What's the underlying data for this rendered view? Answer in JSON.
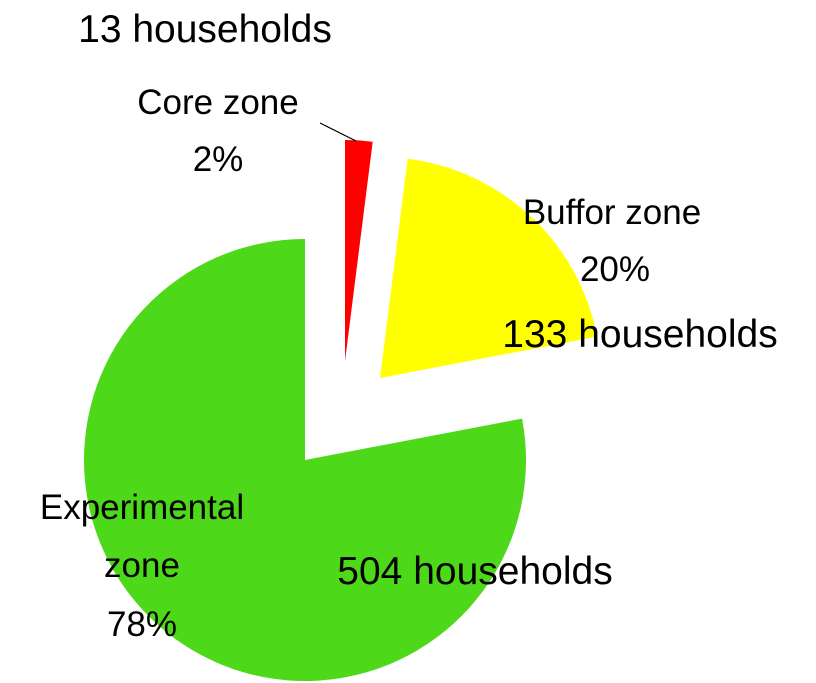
{
  "chart_data": {
    "type": "pie",
    "categories": [
      "Core zone",
      "Buffor zone",
      "Experimental zone"
    ],
    "values": [
      2,
      20,
      78
    ],
    "value_labels": [
      "2%",
      "20%",
      "78%"
    ],
    "household_labels": [
      "13 households",
      "133 households",
      "504 households"
    ],
    "colors": [
      "#ff0000",
      "#ffff00",
      "#4ed81a"
    ]
  }
}
